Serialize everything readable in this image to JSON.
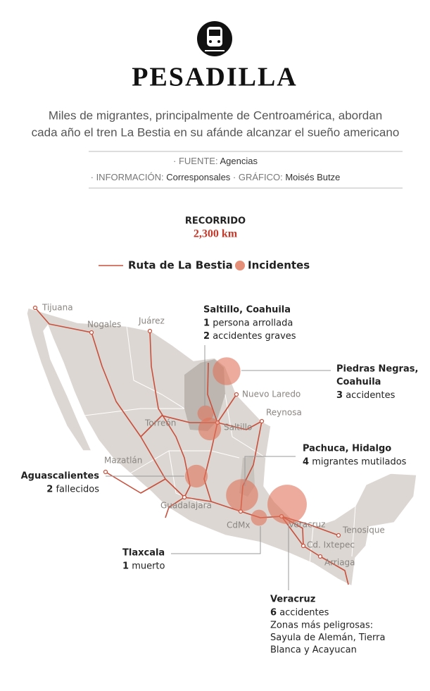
{
  "header": {
    "title": "PESADILLA",
    "subtitle": [
      "Miles de migrantes, principalmente de Centroamérica, abordan",
      "cada año el tren La Bestia en su afánde alcanzar el sueño americano"
    ]
  },
  "credits": {
    "source": {
      "label": "· FUENTE:",
      "value": "Agencias"
    },
    "information": {
      "label": "· INFORMACIÓN:",
      "value": "Corresponsales"
    },
    "graphic": {
      "label": "· GRÁFICO:",
      "value": "Moisés Butze"
    }
  },
  "route": {
    "label": "RECORRIDO",
    "distance": "2,300 km"
  },
  "legend": {
    "route": "Ruta de La Bestia",
    "incidents": "Incidentes"
  },
  "cities": [
    "Tijuana",
    "Nogales",
    "Juárez",
    "Nuevo Laredo",
    "Reynosa",
    "Torreón",
    "Saltillo",
    "Mazatlán",
    "Guadalajara",
    "CdMx",
    "Veracruz",
    "Tenosique",
    "Cd. Ixtepec",
    "Arriaga"
  ],
  "incidents": [
    {
      "place": [
        "Saltillo, Coahuila"
      ],
      "items": [
        {
          "count": 1,
          "text": "persona arrollada"
        },
        {
          "count": 2,
          "text": "accidentes graves"
        }
      ]
    },
    {
      "place": [
        "Piedras Negras,",
        "Coahuila"
      ],
      "items": [
        {
          "count": 3,
          "text": "accidentes"
        }
      ]
    },
    {
      "place": [
        "Pachuca, Hidalgo"
      ],
      "items": [
        {
          "count": 4,
          "text": "migrantes mutilados"
        }
      ]
    },
    {
      "place": [
        "Aguascalientes"
      ],
      "items": [
        {
          "count": 2,
          "text": "fallecidos"
        }
      ]
    },
    {
      "place": [
        "Tlaxcala"
      ],
      "items": [
        {
          "count": 1,
          "text": "muerto"
        }
      ]
    },
    {
      "place": [
        "Veracruz"
      ],
      "items": [
        {
          "count": 6,
          "text": "accidentes"
        }
      ],
      "note": [
        "Zonas más peligrosas:",
        "Sayula de Alemán, Tierra",
        "Blanca y Acayucan"
      ]
    }
  ]
}
